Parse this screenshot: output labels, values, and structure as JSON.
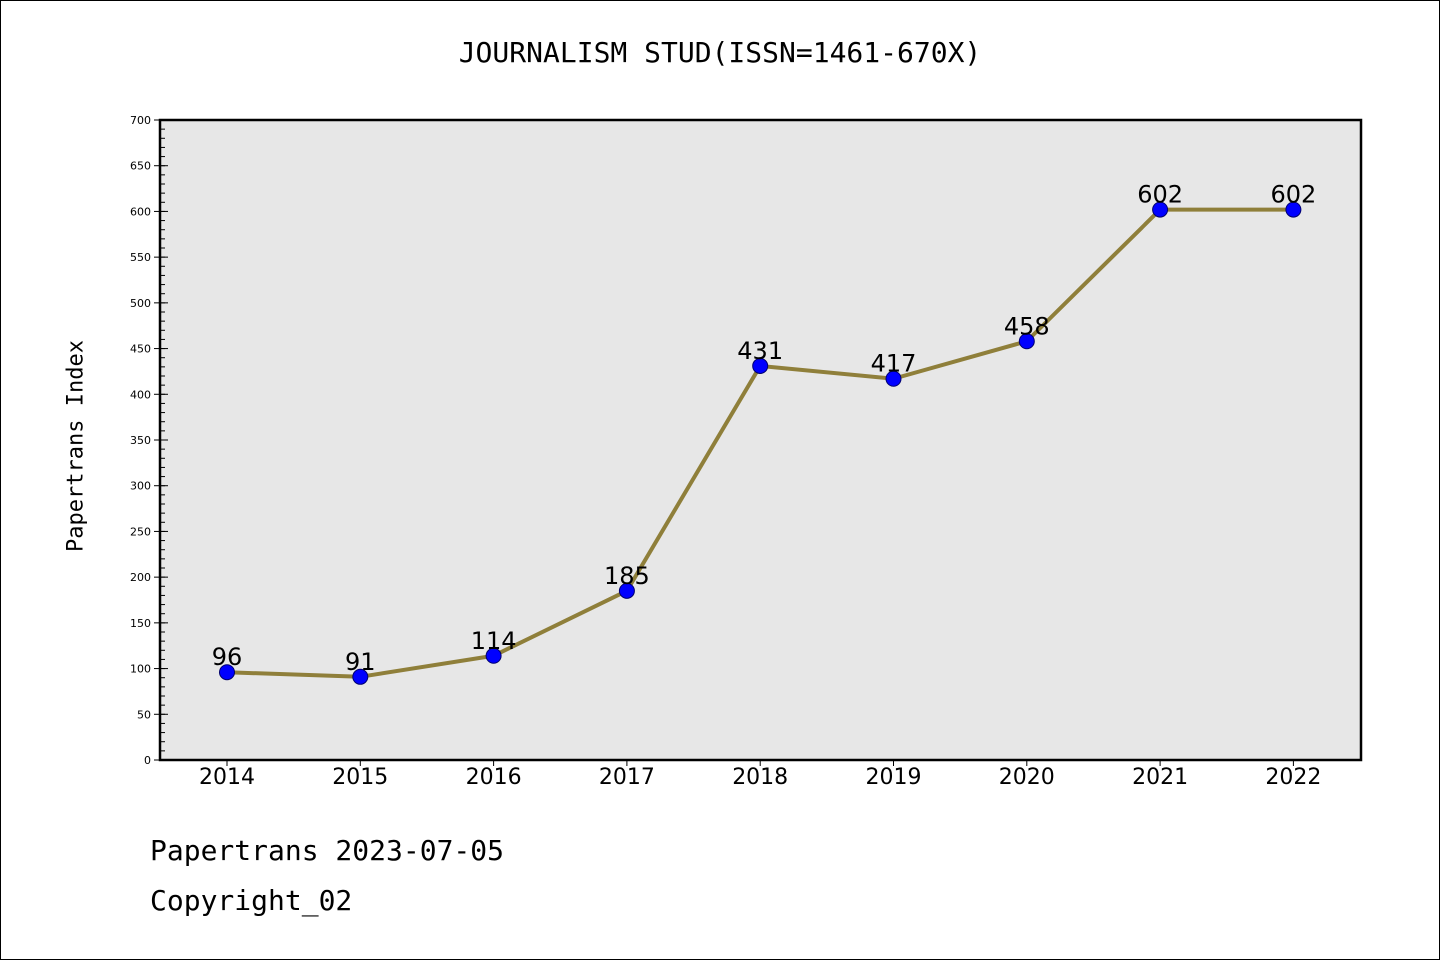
{
  "chart_data": {
    "type": "line",
    "title": "JOURNALISM STUD(ISSN=1461-670X)",
    "xlabel": "",
    "ylabel": "Papertrans Index",
    "categories": [
      "2014",
      "2015",
      "2016",
      "2017",
      "2018",
      "2019",
      "2020",
      "2021",
      "2022"
    ],
    "series": [
      {
        "values": [
          96,
          91,
          114,
          185,
          431,
          417,
          458,
          602,
          602
        ]
      }
    ],
    "data_labels": [
      "96",
      "91",
      "114",
      "185",
      "431",
      "417",
      "458",
      "602",
      "602"
    ],
    "ylim": [
      0,
      700
    ],
    "yticks": [
      0,
      50,
      100,
      150,
      200,
      250,
      300,
      350,
      400,
      450,
      500,
      550,
      600,
      650,
      700
    ],
    "ytick_labels": [
      "0",
      "50",
      "100",
      "150",
      "200",
      "250",
      "300",
      "350",
      "400",
      "450",
      "500",
      "550",
      "600",
      "650",
      "700"
    ],
    "grid": false,
    "legend": "none",
    "colors": {
      "line": "#8f7f3a",
      "marker": "#0000ff",
      "plot_background": "#e7e7e7"
    }
  },
  "footer": {
    "date_text": "Papertrans 2023-07-05",
    "copyright_text": "Copyright_02"
  }
}
